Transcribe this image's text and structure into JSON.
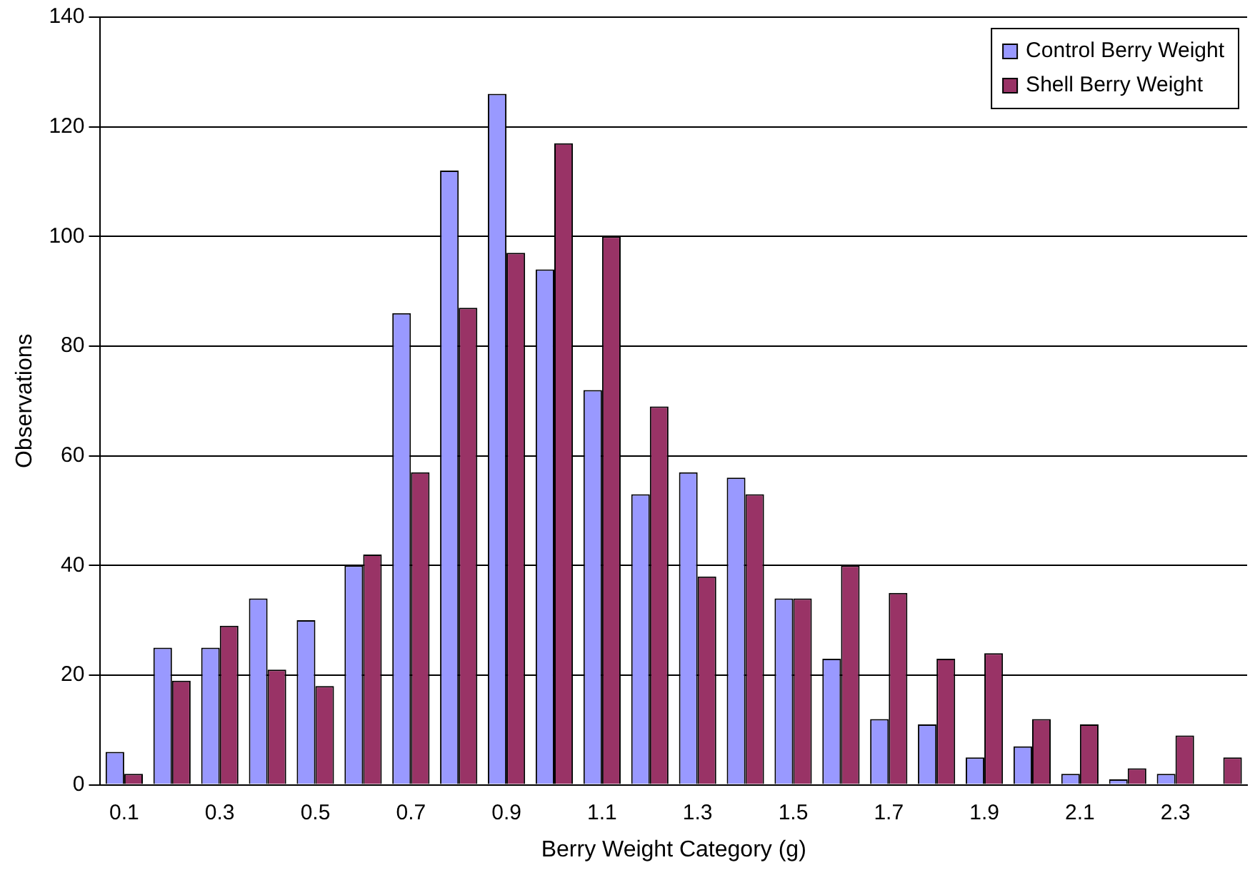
{
  "chart_data": {
    "type": "bar",
    "xlabel": "Berry Weight Category (g)",
    "ylabel": "Observations",
    "categories": [
      "0.1",
      null,
      "0.3",
      null,
      "0.5",
      null,
      "0.7",
      null,
      "0.9",
      null,
      "1.1",
      null,
      "1.3",
      null,
      "1.5",
      null,
      "1.7",
      null,
      "1.9",
      null,
      "2.1",
      null,
      "2.3",
      null
    ],
    "series": [
      {
        "name": "Control Berry Weight",
        "color": "#9999ff",
        "values": [
          6,
          25,
          25,
          34,
          30,
          40,
          86,
          112,
          126,
          94,
          72,
          53,
          57,
          56,
          34,
          23,
          12,
          11,
          5,
          7,
          2,
          1,
          2,
          0
        ]
      },
      {
        "name": "Shell Berry Weight",
        "color": "#993366",
        "values": [
          2,
          19,
          29,
          21,
          18,
          42,
          57,
          87,
          97,
          117,
          100,
          69,
          38,
          53,
          34,
          40,
          35,
          23,
          24,
          12,
          11,
          3,
          9,
          5
        ]
      }
    ],
    "ylim": [
      0,
      140
    ],
    "yticks": [
      0,
      20,
      40,
      60,
      80,
      100,
      120,
      140
    ],
    "grid": "y",
    "legend": "top right"
  }
}
